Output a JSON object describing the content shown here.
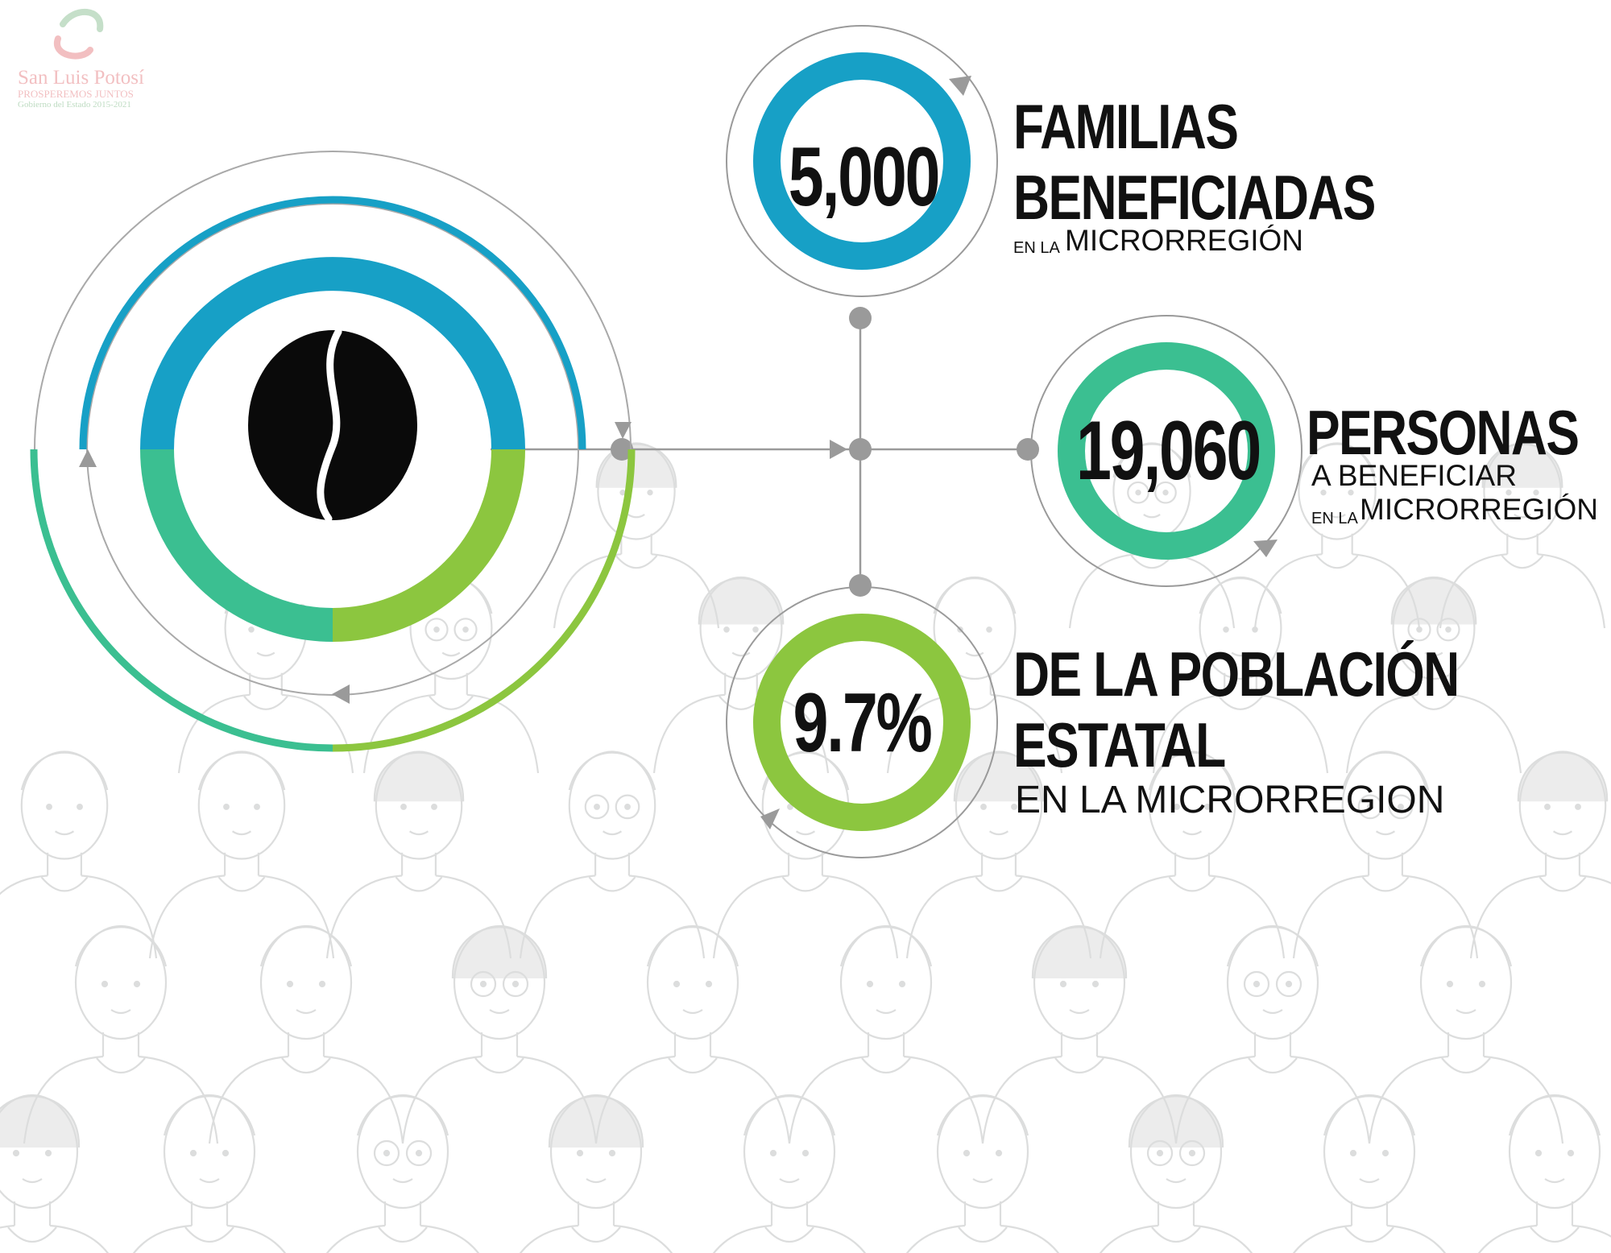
{
  "logo": {
    "name": "San Luis Potosí",
    "slogan": "PROSPEREMOS JUNTOS",
    "period": "Gobierno del Estado 2015-2021"
  },
  "hero": {
    "icon": "coffee-bean-icon"
  },
  "stats": [
    {
      "value": "5,000",
      "lines": [
        {
          "text": "FAMILIAS"
        },
        {
          "text": "BENEFICIADAS"
        },
        {
          "small_prefix": "EN LA",
          "text": "MICRORREGIÓN"
        }
      ]
    },
    {
      "value": "19,060",
      "lines": [
        {
          "text": "PERSONAS"
        },
        {
          "text": "A BENEFICIAR"
        },
        {
          "small_prefix": "EN LA",
          "text": "MICRORREGIÓN"
        }
      ]
    },
    {
      "value": "9.7%",
      "lines": [
        {
          "text": "DE LA POBLACIÓN"
        },
        {
          "text": "ESTATAL"
        },
        {
          "text": "EN LA MICRORREGION"
        }
      ]
    }
  ],
  "colors": {
    "blue": "#17a0c6",
    "teal": "#3bbf91",
    "lime": "#8cc63f",
    "gray_line": "#9a9a9a",
    "crowd": "#dcdddd",
    "logo_red": "#d9484d",
    "logo_green": "#5aa463"
  }
}
